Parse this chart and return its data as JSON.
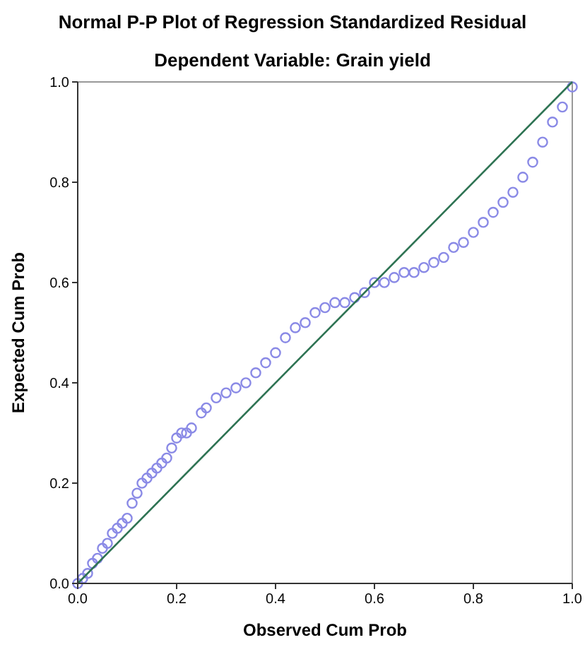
{
  "chart_data": {
    "type": "scatter",
    "title": "Normal P-P Plot of Regression Standardized Residual",
    "subtitle": "Dependent Variable: Grain yield",
    "xlabel": "Observed Cum Prob",
    "ylabel": "Expected Cum Prob",
    "xlim": [
      0,
      1
    ],
    "ylim": [
      0,
      1
    ],
    "xticks": [
      {
        "value": 0,
        "label": "0.0"
      },
      {
        "value": 0.2,
        "label": "0.2"
      },
      {
        "value": 0.4,
        "label": "0.4"
      },
      {
        "value": 0.6,
        "label": "0.6"
      },
      {
        "value": 0.8,
        "label": "0.8"
      },
      {
        "value": 1,
        "label": "1.0"
      }
    ],
    "yticks": [
      {
        "value": 0,
        "label": "0.0"
      },
      {
        "value": 0.2,
        "label": "0.2"
      },
      {
        "value": 0.4,
        "label": "0.4"
      },
      {
        "value": 0.6,
        "label": "0.6"
      },
      {
        "value": 0.8,
        "label": "0.8"
      },
      {
        "value": 1,
        "label": "1.0"
      }
    ],
    "marker": "circle",
    "grid": false,
    "series": [
      {
        "color": "#8a8ae6",
        "x": [
          0.0,
          0.01,
          0.02,
          0.03,
          0.04,
          0.05,
          0.06,
          0.07,
          0.08,
          0.09,
          0.1,
          0.11,
          0.12,
          0.13,
          0.14,
          0.15,
          0.16,
          0.17,
          0.18,
          0.19,
          0.2,
          0.21,
          0.22,
          0.23,
          0.25,
          0.26,
          0.28,
          0.3,
          0.32,
          0.34,
          0.36,
          0.38,
          0.4,
          0.42,
          0.44,
          0.46,
          0.48,
          0.5,
          0.52,
          0.54,
          0.56,
          0.58,
          0.6,
          0.62,
          0.64,
          0.66,
          0.68,
          0.7,
          0.72,
          0.74,
          0.76,
          0.78,
          0.8,
          0.82,
          0.84,
          0.86,
          0.88,
          0.9,
          0.92,
          0.94,
          0.96,
          0.98,
          1.0
        ],
        "values": [
          0.0,
          0.01,
          0.02,
          0.04,
          0.05,
          0.07,
          0.08,
          0.1,
          0.11,
          0.12,
          0.13,
          0.16,
          0.18,
          0.2,
          0.21,
          0.22,
          0.23,
          0.24,
          0.25,
          0.27,
          0.29,
          0.3,
          0.3,
          0.31,
          0.34,
          0.35,
          0.37,
          0.38,
          0.39,
          0.4,
          0.42,
          0.44,
          0.46,
          0.49,
          0.51,
          0.52,
          0.54,
          0.55,
          0.56,
          0.56,
          0.57,
          0.58,
          0.6,
          0.6,
          0.61,
          0.62,
          0.62,
          0.63,
          0.64,
          0.65,
          0.67,
          0.68,
          0.7,
          0.72,
          0.74,
          0.76,
          0.78,
          0.81,
          0.84,
          0.88,
          0.92,
          0.95,
          0.99
        ]
      },
      {
        "type": "line",
        "color": "#2e7353",
        "x": [
          0,
          1
        ],
        "values": [
          0,
          1
        ],
        "marker": "none"
      }
    ]
  }
}
